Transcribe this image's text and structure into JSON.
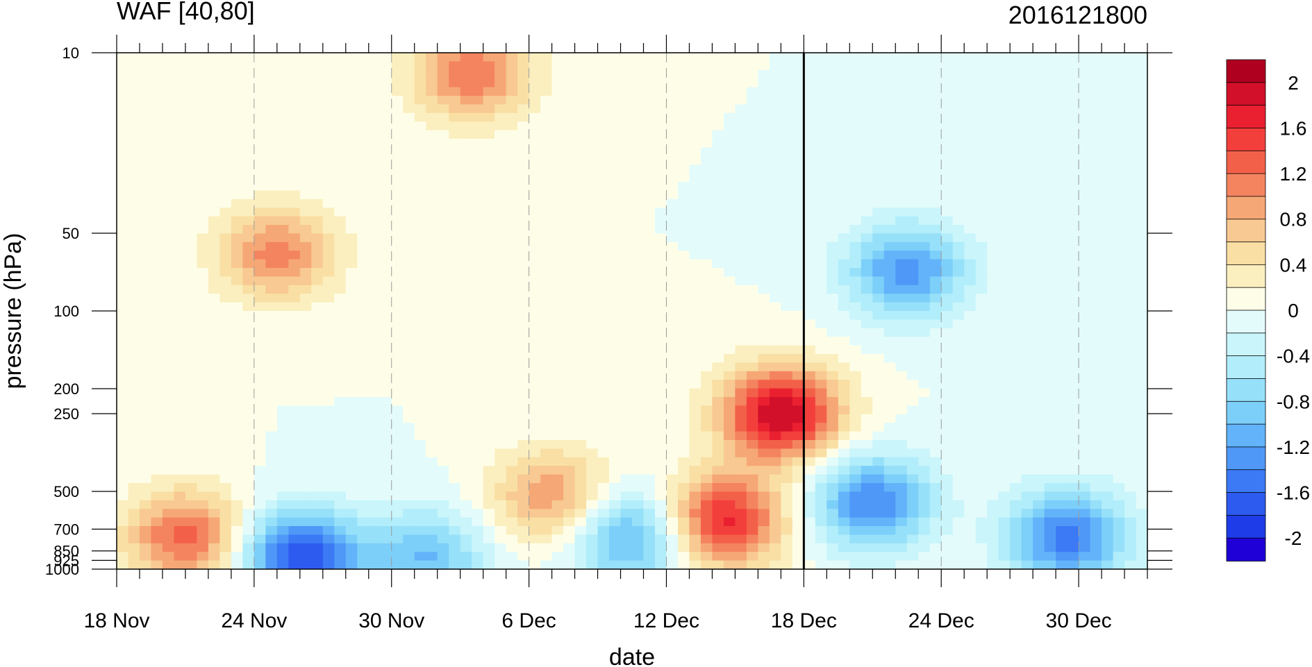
{
  "chart_data": {
    "type": "heatmap",
    "title": "WAF [40,80]",
    "subtitle_right": "2016121800",
    "xlabel": "date",
    "ylabel": "pressure (hPa)",
    "x_ticks": [
      "18 Nov",
      "24 Nov",
      "30 Nov",
      "6 Dec",
      "12 Dec",
      "18 Dec",
      "24 Dec",
      "30 Dec"
    ],
    "x_range_days": [
      0,
      45
    ],
    "y_ticks": [
      10,
      50,
      100,
      200,
      250,
      500,
      700,
      850,
      925,
      1000
    ],
    "y_scale": "log-pressure",
    "y_range": [
      10,
      1000
    ],
    "current_date_marker": "18 Dec",
    "colorbar": {
      "levels": [
        -2.2,
        -2.0,
        -1.8,
        -1.6,
        -1.4,
        -1.2,
        -1.0,
        -0.8,
        -0.6,
        -0.4,
        -0.2,
        0.0,
        0.2,
        0.4,
        0.6,
        0.8,
        1.0,
        1.2,
        1.4,
        1.6,
        1.8,
        2.0,
        2.2
      ],
      "labels": [
        "2",
        "1.6",
        "1.2",
        "0.8",
        "0.4",
        "0",
        "-0.4",
        "-0.8",
        "-1.2",
        "-1.6",
        "-2"
      ],
      "colors": [
        "#1f00d6",
        "#1e3de8",
        "#2d5bf0",
        "#3b79f5",
        "#4f98f7",
        "#62b3f9",
        "#7ccff9",
        "#97e0fa",
        "#b1edfa",
        "#c9f5fb",
        "#e3fbfb",
        "#fefee8",
        "#fbefc0",
        "#f9dfa3",
        "#f8c992",
        "#f6a776",
        "#f48460",
        "#f36049",
        "#f33f3c",
        "#ea2030",
        "#d3102a",
        "#b00020"
      ]
    },
    "features": [
      {
        "name": "positive-strat-upper",
        "day": 7.0,
        "p": 60,
        "value": 1.1
      },
      {
        "name": "positive-strat-top",
        "day": 15.5,
        "p": 12,
        "value": 1.2
      },
      {
        "name": "positive-trop-lower",
        "day": 3.0,
        "p": 750,
        "value": 1.3
      },
      {
        "name": "positive-trop-dec7",
        "day": 19.0,
        "p": 520,
        "value": 1.0
      },
      {
        "name": "positive-max-dec17",
        "day": 29.0,
        "p": 250,
        "value": 2.0
      },
      {
        "name": "positive-dec15",
        "day": 26.5,
        "p": 650,
        "value": 1.7
      },
      {
        "name": "negative-strat-dec23",
        "day": 34.5,
        "p": 70,
        "value": -1.3
      },
      {
        "name": "negative-lower-dec23",
        "day": 33.0,
        "p": 550,
        "value": -1.4
      },
      {
        "name": "negative-lower-nov26",
        "day": 8.0,
        "p": 900,
        "value": -1.8
      },
      {
        "name": "negative-lower-dec1",
        "day": 13.5,
        "p": 900,
        "value": -1.0
      },
      {
        "name": "negative-lower-dec11",
        "day": 22.5,
        "p": 750,
        "value": -1.2
      },
      {
        "name": "negative-lower-jan",
        "day": 41.5,
        "p": 750,
        "value": -1.5
      }
    ]
  }
}
